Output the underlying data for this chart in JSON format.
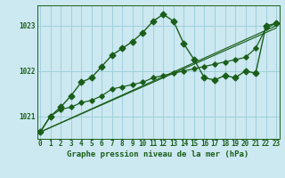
{
  "title": "Graphe pression niveau de la mer (hPa)",
  "background_color": "#cce8f0",
  "grid_color": "#99ccd8",
  "line_color": "#1a5e1a",
  "ylim": [
    1020.5,
    1023.45
  ],
  "xlim": [
    -0.3,
    23.3
  ],
  "yticks": [
    1021,
    1022,
    1023
  ],
  "xticks": [
    0,
    1,
    2,
    3,
    4,
    5,
    6,
    7,
    8,
    9,
    10,
    11,
    12,
    13,
    14,
    15,
    16,
    17,
    18,
    19,
    20,
    21,
    22,
    23
  ],
  "series": [
    {
      "x": [
        0,
        1,
        2,
        3,
        4,
        5,
        6,
        7,
        8,
        9,
        10,
        11,
        12,
        13,
        14,
        15,
        16,
        17,
        18,
        19,
        20,
        21,
        22,
        23
      ],
      "y": [
        1020.65,
        1021.0,
        1021.2,
        1021.45,
        1021.75,
        1021.85,
        1022.1,
        1022.35,
        1022.5,
        1022.65,
        1022.85,
        1023.1,
        1023.25,
        1023.1,
        1022.6,
        1022.25,
        1021.85,
        1021.8,
        1021.9,
        1021.85,
        1022.0,
        1021.95,
        1023.0,
        1023.05
      ],
      "marker_x": [
        0,
        1,
        2,
        3,
        4,
        5,
        6,
        7,
        8,
        9,
        10,
        11,
        12,
        13,
        14,
        15,
        16,
        17,
        18,
        19,
        20,
        21,
        22,
        23
      ],
      "linewidth": 1.0,
      "markersize": 3.5
    },
    {
      "x": [
        0,
        1,
        2,
        3,
        4,
        5,
        6,
        7,
        8,
        9,
        10,
        11,
        12,
        13,
        14,
        15,
        16,
        17,
        18,
        19,
        20,
        21,
        22,
        23
      ],
      "y": [
        1020.65,
        1021.0,
        1021.15,
        1021.2,
        1021.3,
        1021.35,
        1021.45,
        1021.6,
        1021.65,
        1021.7,
        1021.75,
        1021.85,
        1021.9,
        1021.95,
        1022.0,
        1022.05,
        1022.1,
        1022.15,
        1022.2,
        1022.25,
        1022.3,
        1022.5,
        1022.95,
        1023.05
      ],
      "marker_x": [
        0,
        1,
        2,
        3,
        4,
        5,
        6,
        7,
        8,
        9,
        10,
        11,
        12,
        13,
        14,
        15,
        16,
        17,
        18,
        19,
        20,
        21,
        22,
        23
      ],
      "linewidth": 0.9,
      "markersize": 2.8
    },
    {
      "x": [
        0,
        23
      ],
      "y": [
        1020.65,
        1023.0
      ],
      "marker_x": [],
      "linewidth": 0.85,
      "markersize": 0
    },
    {
      "x": [
        0,
        23
      ],
      "y": [
        1020.65,
        1022.95
      ],
      "marker_x": [],
      "linewidth": 0.85,
      "markersize": 0
    }
  ],
  "title_fontsize": 6.5,
  "tick_fontsize": 5.5,
  "label_color": "#1a5e1a"
}
